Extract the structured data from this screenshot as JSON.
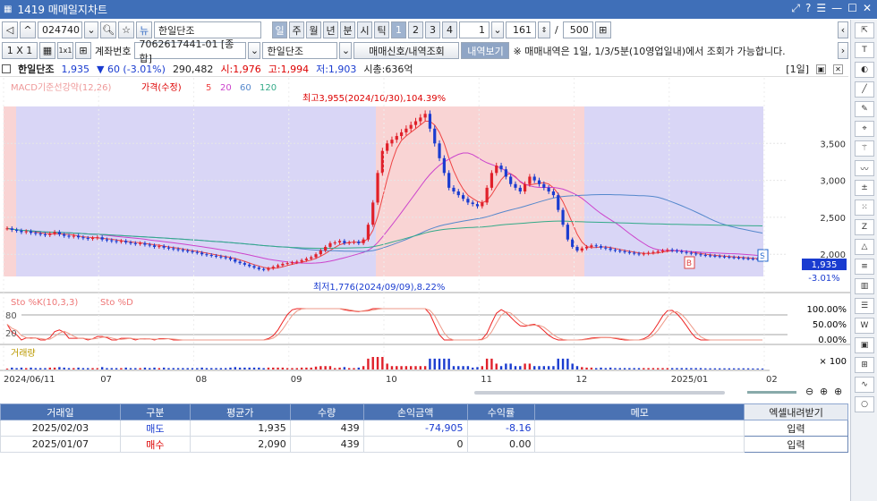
{
  "window": {
    "title": "1419 매매일지차트",
    "controls": [
      "⤢",
      "?",
      "☰",
      "—",
      "☐",
      "✕"
    ]
  },
  "toolbar1": {
    "code": "024740",
    "stock_name": "한일단조",
    "periods": [
      "일",
      "주",
      "월",
      "년",
      "분",
      "시",
      "틱"
    ],
    "counts": [
      "1",
      "2",
      "3",
      "4"
    ],
    "span_val": "1",
    "bars_val": "161",
    "sep": "/",
    "total_val": "500"
  },
  "toolbar2": {
    "layout_label": "1 X 1",
    "acct_label": "계좌번호",
    "acct_value": "7062617441-01 [종합]",
    "stock_combo": "한일단조",
    "signal_btn": "매매신호/내역조회",
    "view_btn": "내역보기",
    "notice": "※ 매매내역은 1일, 1/3/5분(10영업일내)에서 조회가 가능합니다."
  },
  "infobar": {
    "name": "한일단조",
    "price": "1,935",
    "change": "▼ 60 (-3.01%)",
    "volume": "290,482",
    "open": "시:1,976",
    "high": "고:1,994",
    "low": "저:1,903",
    "mcap": "시총:636억",
    "period": "[1일]"
  },
  "chart_data": {
    "type": "line",
    "legend_price": [
      "MACD기준선강약(12,26)",
      "가격(수정)",
      "5",
      "20",
      "60",
      "120"
    ],
    "y_ticks": [
      "3,500",
      "3,000",
      "2,500",
      "2,000"
    ],
    "ylim": [
      1700,
      4000
    ],
    "annotations": {
      "high": "최고3,955(2024/10/30),104.39%",
      "low": "최저1,776(2024/09/09),8.22%",
      "last": "1,935",
      "last_pct": "-3.01%"
    },
    "x_ticks": [
      "2024/06/11",
      "07",
      "08",
      "09",
      "10",
      "11",
      "12",
      "2025/01",
      "02"
    ],
    "close": [
      2350,
      2330,
      2320,
      2300,
      2310,
      2290,
      2280,
      2270,
      2260,
      2280,
      2300,
      2270,
      2250,
      2240,
      2250,
      2230,
      2220,
      2210,
      2220,
      2230,
      2200,
      2190,
      2180,
      2170,
      2180,
      2160,
      2150,
      2140,
      2150,
      2130,
      2120,
      2100,
      2110,
      2090,
      2080,
      2070,
      2060,
      2050,
      2040,
      2030,
      2020,
      2000,
      1990,
      1980,
      1970,
      1960,
      1950,
      1930,
      1900,
      1880,
      1860,
      1840,
      1820,
      1800,
      1790,
      1810,
      1830,
      1850,
      1870,
      1880,
      1890,
      1900,
      1920,
      1940,
      1960,
      2000,
      2050,
      2100,
      2150,
      2160,
      2180,
      2150,
      2160,
      2170,
      2150,
      2200,
      2400,
      2700,
      3100,
      3400,
      3500,
      3550,
      3600,
      3650,
      3700,
      3750,
      3800,
      3850,
      3900,
      3700,
      3500,
      3300,
      3100,
      2900,
      2850,
      2800,
      2750,
      2700,
      2680,
      2650,
      2700,
      2900,
      3100,
      3200,
      3150,
      3050,
      2950,
      2900,
      2850,
      2950,
      3050,
      3000,
      2950,
      2900,
      2850,
      2800,
      2600,
      2400,
      2200,
      2100,
      2050,
      2080,
      2100,
      2120,
      2110,
      2090,
      2080,
      2060,
      2050,
      2040,
      2030,
      2020,
      2010,
      2000,
      2010,
      2020,
      2030,
      2040,
      2050,
      2060,
      2050,
      2040,
      2030,
      2020,
      2010,
      2000,
      1990,
      1985,
      1980,
      1975,
      1970,
      1965,
      1960,
      1955,
      1950,
      1945,
      1940,
      1938,
      1936,
      1935
    ],
    "sto_legend": [
      "Sto %K(10,3,3)",
      "Sto %D"
    ],
    "sto_ticks": [
      "100.00%",
      "50.00%",
      "0.00%"
    ],
    "sto_levels": [
      "80",
      "20"
    ],
    "vol_legend": "거래량",
    "vol_unit": "× 100",
    "markers": [
      "B",
      "S"
    ]
  },
  "orders": {
    "headers": [
      "거래일",
      "구분",
      "평균가",
      "수량",
      "손익금액",
      "수익률",
      "메모"
    ],
    "excel": "엑셀내려받기",
    "rows": [
      {
        "date": "2025/02/03",
        "type": "매도",
        "avg": "1,935",
        "qty": "439",
        "pnl": "-74,905",
        "rate": "-8.16",
        "memo": "",
        "btn": "입력"
      },
      {
        "date": "2025/01/07",
        "type": "매수",
        "avg": "2,090",
        "qty": "439",
        "pnl": "0",
        "rate": "0.00",
        "memo": "",
        "btn": "입력"
      }
    ]
  },
  "side_tools": [
    "pin",
    "TOOL",
    "marker",
    "line",
    "pen",
    "pin2",
    "fx",
    "wave",
    "±",
    "99",
    "Z",
    "triangle",
    "list",
    "bars",
    "stack",
    "WW",
    "img",
    "calc",
    "wave2",
    "circle"
  ]
}
